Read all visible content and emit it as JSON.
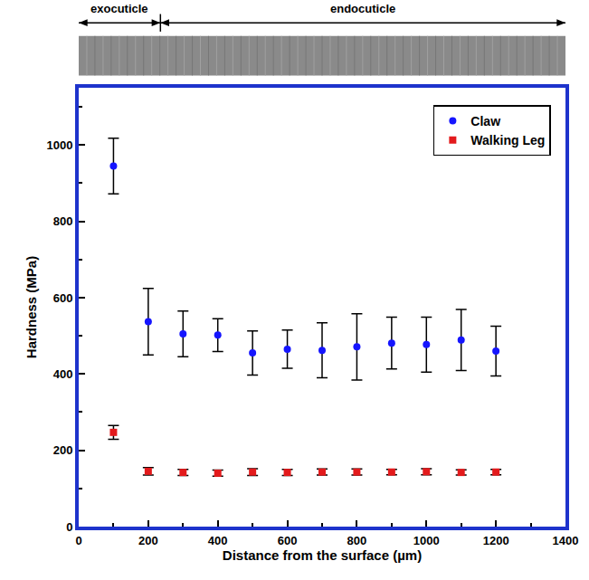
{
  "chart_data": {
    "type": "scatter",
    "x_label": "Distance from the surface (µm)",
    "y_label": "Hardness (MPa)",
    "x": [
      100,
      200,
      300,
      400,
      500,
      600,
      700,
      800,
      900,
      1000,
      1100,
      1200
    ],
    "series": [
      {
        "name": "Claw",
        "color": "#1515ff",
        "marker": "circle",
        "values": [
          945,
          537,
          505,
          502,
          455,
          465,
          462,
          471,
          481,
          477,
          489,
          460
        ],
        "errors": [
          73,
          87,
          60,
          43,
          58,
          50,
          72,
          87,
          68,
          72,
          80,
          65
        ]
      },
      {
        "name": "Walking Leg",
        "color": "#e31a1c",
        "marker": "square",
        "values": [
          247,
          145,
          142,
          140,
          143,
          142,
          143,
          143,
          143,
          144,
          142,
          143
        ],
        "errors": [
          18,
          10,
          8,
          8,
          9,
          8,
          8,
          8,
          7,
          8,
          7,
          7
        ]
      }
    ],
    "regions": [
      {
        "label": "exocuticle",
        "x": [
          0,
          235
        ]
      },
      {
        "label": "endocuticle",
        "x": [
          235,
          1400
        ]
      }
    ],
    "xlim": [
      0,
      1400
    ],
    "xticks": [
      0,
      200,
      400,
      600,
      800,
      1000,
      1200,
      1400
    ],
    "ylim": [
      0,
      1150
    ],
    "yticks": [
      0,
      200,
      400,
      600,
      800,
      1000
    ],
    "grid": false,
    "legend": "upper right"
  }
}
